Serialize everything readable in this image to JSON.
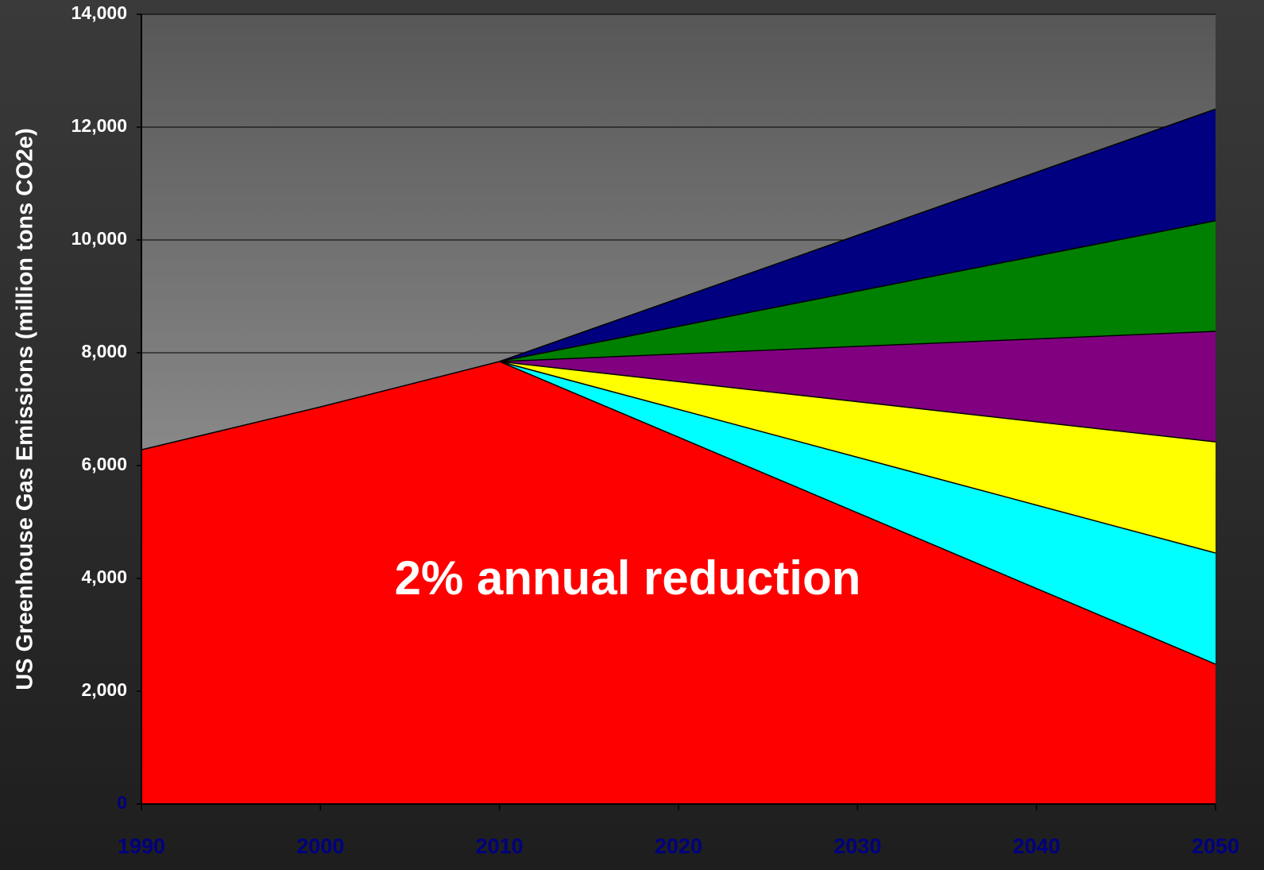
{
  "chart_data": {
    "type": "area",
    "y_label": "US Greenhouse Gas Emissions (million tons CO2e)",
    "annotation": "2% annual reduction",
    "x": [
      1990,
      2000,
      2010,
      2050
    ],
    "series": [
      {
        "name": "2% annual reduction",
        "color": "#ff0000",
        "values": [
          6280,
          7040,
          7845,
          2480
        ]
      },
      {
        "color": "#00ffff",
        "values": [
          null,
          null,
          7845,
          4450
        ]
      },
      {
        "color": "#ffff00",
        "values": [
          null,
          null,
          7845,
          6420
        ]
      },
      {
        "color": "#800080",
        "values": [
          null,
          null,
          7845,
          8380
        ]
      },
      {
        "color": "#008000",
        "values": [
          null,
          null,
          7845,
          10340
        ]
      },
      {
        "color": "#000080",
        "values": [
          null,
          null,
          7845,
          12320
        ]
      }
    ],
    "xlim": [
      1990,
      2050
    ],
    "xticks": [
      1990,
      2000,
      2010,
      2020,
      2030,
      2040,
      2050
    ],
    "ylim": [
      0,
      14000
    ],
    "yticks": [
      0,
      {
        "value": 2000,
        "label": "2,000"
      },
      {
        "value": 4000,
        "label": "4,000"
      },
      {
        "value": 6000,
        "label": "6,000"
      },
      {
        "value": 8000,
        "label": "8,000"
      },
      {
        "value": 10000,
        "label": "10,000"
      },
      {
        "value": 12000,
        "label": "12,000"
      },
      {
        "value": 14000,
        "label": "14,000"
      }
    ],
    "grid": true
  }
}
